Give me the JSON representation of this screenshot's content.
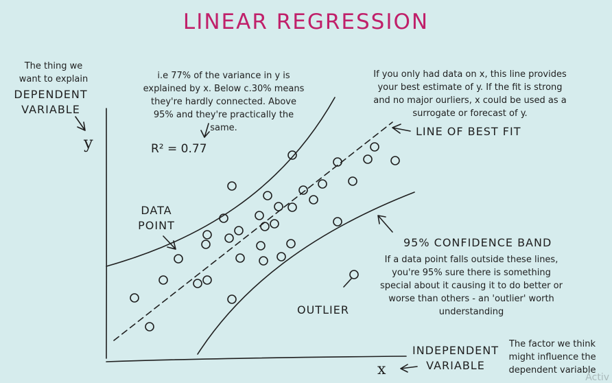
{
  "title": "LINEAR REGRESSION",
  "dependent": {
    "note": "The thing we want to explain",
    "label": "DEPENDENT VARIABLE",
    "axis": "y"
  },
  "independent": {
    "label": "INDEPENDENT VARIABLE",
    "note": "The factor we think might influence the dependent variable",
    "axis": "x"
  },
  "r2": {
    "note": "i.e 77% of the variance in y is explained by x. Below c.30% means they're hardly connected.  Above 95% and they're practically the same.",
    "value": "R² = 0.77"
  },
  "best_fit": {
    "note": "If you only had data on x, this line provides your best estimate of y.  If the fit is strong and no major ourliers, x could be used as a surrogate or forecast of y.",
    "label": "LINE OF BEST FIT"
  },
  "data_point": {
    "label": "DATA POINT"
  },
  "confidence": {
    "label": "95% CONFIDENCE BAND",
    "note": "If a data point falls outside these lines, you're 95% sure there is something special about it causing it to do better or worse than others - an 'outlier' worth understanding"
  },
  "outlier": {
    "label": "OUTLIER"
  },
  "watermark": "Activ",
  "colors": {
    "background": "#d6eced",
    "title": "#c0206a",
    "ink": "#1f1f1f"
  }
}
